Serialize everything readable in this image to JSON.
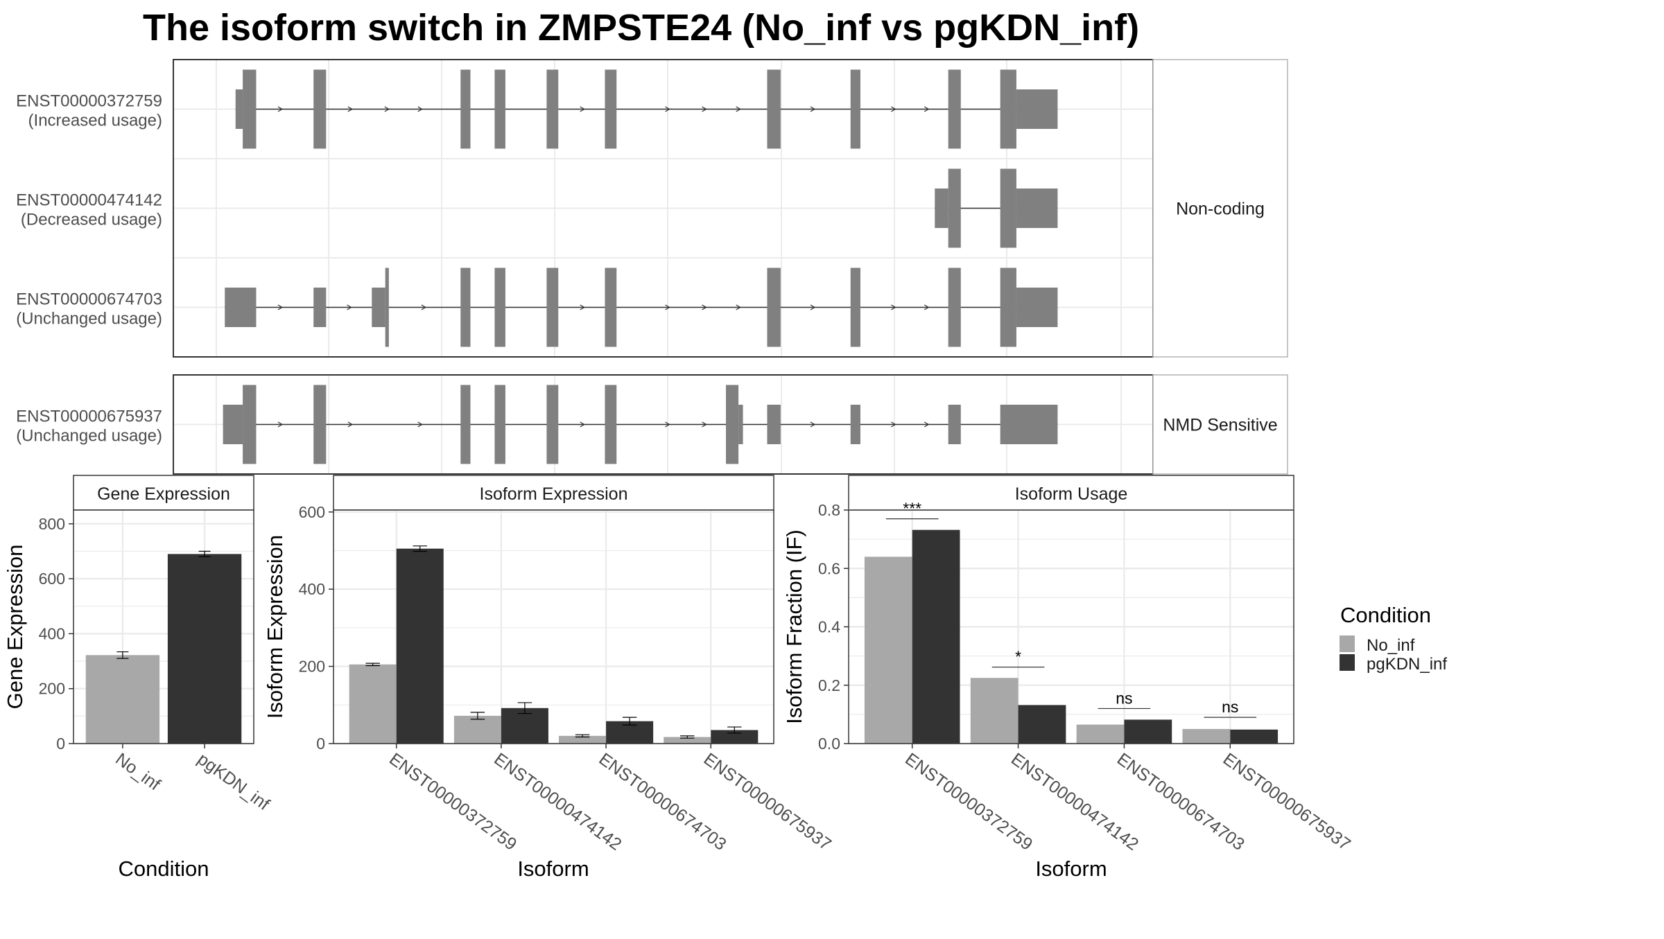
{
  "title": "The isoform switch in ZMPSTE24 (No_inf vs pgKDN_inf)",
  "colors": {
    "no_inf": "#A8A8A8",
    "pgkdn_inf": "#333333",
    "exon": "#808080",
    "grid": "#EBEBEB",
    "panel_border": "#333333",
    "strip_border": "#B3B3B3"
  },
  "structure": {
    "coordinate_range": [
      0,
      100
    ],
    "groups": [
      {
        "label": "Non-coding",
        "isoforms": [
          {
            "id": "ENST00000372759",
            "usage": "(Increased usage)",
            "exons": [
              [
                2.3,
                3.1,
                "s"
              ],
              [
                3.1,
                4.6,
                "t"
              ],
              [
                11.0,
                12.4,
                "t"
              ],
              [
                27.4,
                28.5,
                "t"
              ],
              [
                31.2,
                32.4,
                "t"
              ],
              [
                37.0,
                38.3,
                "t"
              ],
              [
                43.5,
                44.8,
                "t"
              ],
              [
                61.6,
                63.1,
                "t"
              ],
              [
                70.9,
                72.0,
                "t"
              ],
              [
                81.8,
                83.2,
                "t"
              ],
              [
                87.6,
                89.4,
                "t"
              ],
              [
                89.4,
                94.0,
                "s"
              ]
            ],
            "arrows": [
              7.5,
              15.3,
              19.4,
              23.1,
              41.2,
              50.7,
              54.8,
              58.6,
              66.9,
              75.9,
              79.6
            ]
          },
          {
            "id": "ENST00000474142",
            "usage": "(Decreased usage)",
            "exons": [
              [
                80.3,
                81.8,
                "s"
              ],
              [
                81.8,
                83.2,
                "t"
              ],
              [
                87.6,
                89.4,
                "t"
              ],
              [
                89.4,
                94.0,
                "s"
              ]
            ],
            "arrows": []
          },
          {
            "id": "ENST00000674703",
            "usage": "(Unchanged usage)",
            "exons": [
              [
                1.1,
                4.6,
                "s"
              ],
              [
                11.0,
                12.4,
                "s"
              ],
              [
                17.5,
                19.0,
                "s"
              ],
              [
                19.0,
                19.4,
                "t"
              ],
              [
                27.4,
                28.5,
                "t"
              ],
              [
                31.2,
                32.4,
                "t"
              ],
              [
                37.0,
                38.3,
                "t"
              ],
              [
                43.5,
                44.8,
                "t"
              ],
              [
                61.6,
                63.1,
                "t"
              ],
              [
                70.9,
                72.0,
                "t"
              ],
              [
                81.8,
                83.2,
                "t"
              ],
              [
                87.6,
                89.4,
                "t"
              ],
              [
                89.4,
                94.0,
                "s"
              ]
            ],
            "arrows": [
              7.5,
              15.2,
              23.5,
              41.2,
              50.7,
              54.8,
              58.6,
              66.9,
              75.9,
              79.6
            ]
          }
        ]
      },
      {
        "label": "NMD Sensitive",
        "isoforms": [
          {
            "id": "ENST00000675937",
            "usage": "(Unchanged usage)",
            "exons": [
              [
                0.9,
                3.1,
                "s"
              ],
              [
                3.1,
                4.6,
                "t"
              ],
              [
                11.0,
                12.4,
                "t"
              ],
              [
                27.4,
                28.5,
                "t"
              ],
              [
                31.2,
                32.4,
                "t"
              ],
              [
                37.0,
                38.3,
                "t"
              ],
              [
                43.5,
                44.8,
                "t"
              ],
              [
                57.0,
                58.4,
                "t"
              ],
              [
                58.4,
                58.9,
                "s"
              ],
              [
                61.6,
                63.1,
                "s"
              ],
              [
                70.9,
                72.0,
                "s"
              ],
              [
                81.8,
                83.2,
                "s"
              ],
              [
                87.6,
                94.0,
                "s"
              ]
            ],
            "arrows": [
              7.5,
              15.3,
              23.1,
              41.2,
              50.7,
              54.8,
              66.9,
              75.9,
              79.6
            ]
          }
        ]
      }
    ]
  },
  "chart_data": [
    {
      "type": "bar",
      "title": "Gene Expression",
      "xlabel": "Condition",
      "ylabel": "Gene Expression",
      "categories": [
        "No_inf",
        "pgKDN_inf"
      ],
      "values": [
        322,
        690
      ],
      "errors": [
        12,
        10
      ],
      "ylim": [
        0,
        850
      ],
      "yticks": [
        0,
        200,
        400,
        600,
        800
      ],
      "grid": true
    },
    {
      "type": "bar",
      "title": "Isoform Expression",
      "xlabel": "Isoform",
      "ylabel": "Isoform Expression",
      "categories": [
        "ENST00000372759",
        "ENST00000474142",
        "ENST00000674703",
        "ENST00000675937"
      ],
      "series": [
        {
          "name": "No_inf",
          "values": [
            205,
            72,
            20,
            17
          ],
          "errors": [
            3,
            9,
            3,
            3
          ]
        },
        {
          "name": "pgKDN_inf",
          "values": [
            505,
            92,
            58,
            35
          ],
          "errors": [
            7,
            14,
            10,
            8
          ]
        }
      ],
      "ylim": [
        0,
        605
      ],
      "yticks": [
        0,
        200,
        400,
        600
      ],
      "grid": true
    },
    {
      "type": "bar",
      "title": "Isoform Usage",
      "xlabel": "Isoform",
      "ylabel": "Isoform Fraction (IF)",
      "categories": [
        "ENST00000372759",
        "ENST00000474142",
        "ENST00000674703",
        "ENST00000675937"
      ],
      "series": [
        {
          "name": "No_inf",
          "values": [
            0.64,
            0.225,
            0.065,
            0.05
          ]
        },
        {
          "name": "pgKDN_inf",
          "values": [
            0.732,
            0.132,
            0.082,
            0.048
          ]
        }
      ],
      "significance": [
        {
          "label": "***",
          "level": 0.77
        },
        {
          "label": "*",
          "level": 0.262
        },
        {
          "label": "ns",
          "level": 0.12
        },
        {
          "label": "ns",
          "level": 0.09
        }
      ],
      "ylim": [
        0,
        0.8
      ],
      "yticks": [
        "0.0",
        "0.2",
        "0.4",
        "0.6",
        "0.8"
      ],
      "grid": true
    }
  ],
  "legend": {
    "title": "Condition",
    "items": [
      "No_inf",
      "pgKDN_inf"
    ]
  }
}
